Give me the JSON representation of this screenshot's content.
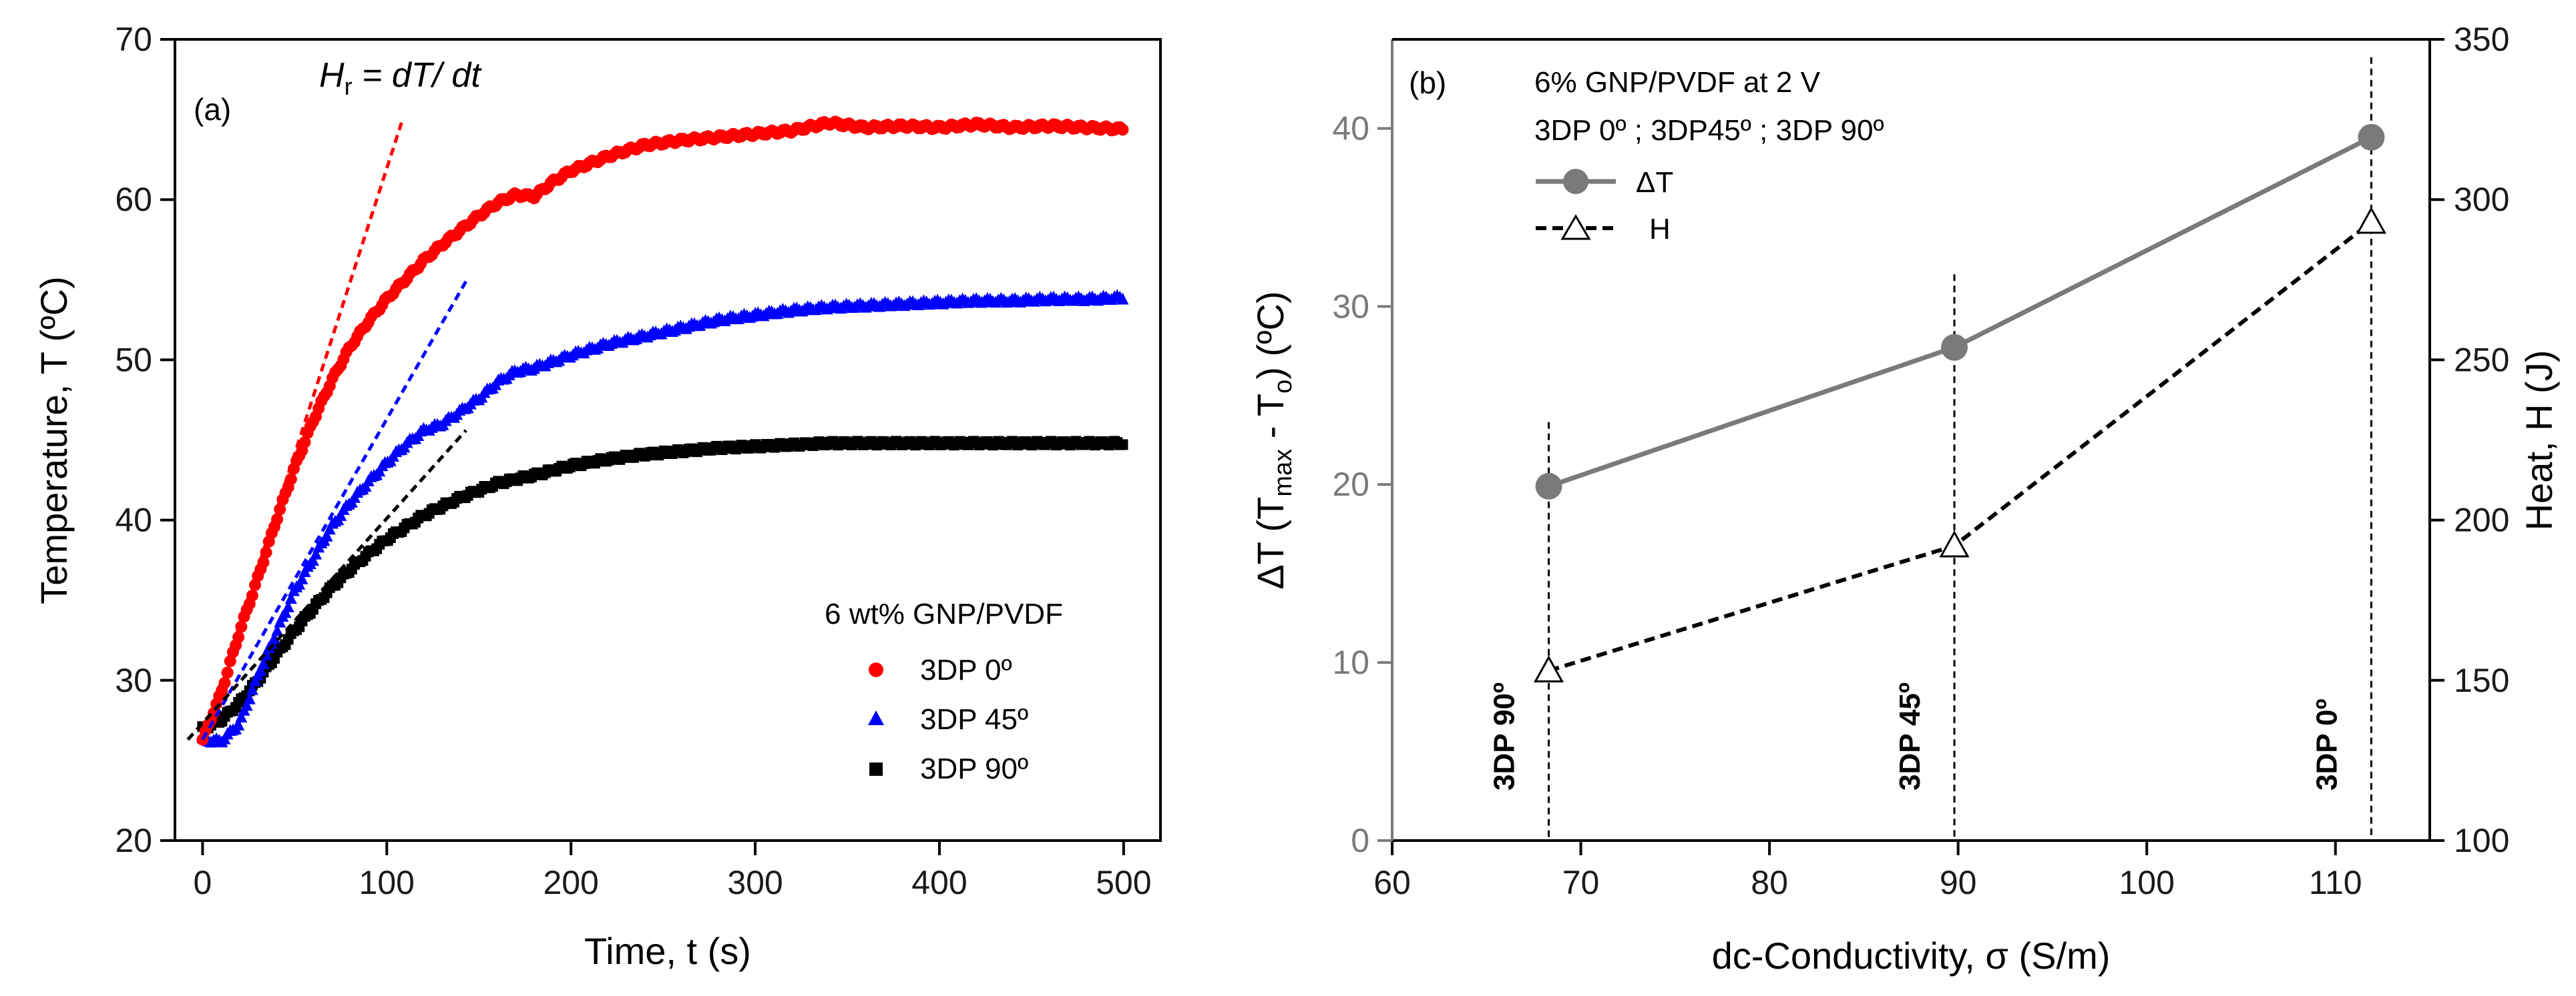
{
  "figure": "two-panel chart",
  "chart_data": [
    {
      "type": "scatter",
      "panel_label": "(a)",
      "xlabel": "Time, t (s)",
      "ylabel": "Temperature, T (ºC)",
      "xlim": [
        -15,
        520
      ],
      "ylim": [
        20,
        70
      ],
      "xticks": [
        0,
        100,
        200,
        300,
        400,
        500
      ],
      "yticks": [
        20,
        30,
        40,
        50,
        60,
        70
      ],
      "annotation": {
        "prefix": "H",
        "subscript": "r",
        "suffix": " = dT/ dt"
      },
      "legend_title": "6 wt% GNP/PVDF",
      "series": [
        {
          "name": "3DP 0º",
          "color": "#ff0000",
          "marker": "circle",
          "t": [
            0,
            10,
            20,
            30,
            40,
            50,
            60,
            70,
            80,
            90,
            100,
            110,
            120,
            130,
            140,
            150,
            160,
            170,
            180,
            190,
            200,
            220,
            240,
            260,
            280,
            300,
            320,
            340,
            360,
            380,
            400,
            420,
            440,
            460,
            480,
            500
          ],
          "T": [
            26.3,
            29.2,
            33.0,
            36.4,
            40.0,
            43.3,
            46.2,
            48.7,
            50.8,
            52.4,
            53.8,
            55.0,
            56.2,
            57.2,
            58.1,
            59.0,
            59.8,
            60.3,
            60.2,
            61.1,
            61.8,
            62.7,
            63.4,
            63.7,
            63.9,
            64.1,
            64.3,
            64.8,
            64.5,
            64.6,
            64.5,
            64.7,
            64.5,
            64.6,
            64.5,
            64.4
          ]
        },
        {
          "name": "3DP 45º",
          "color": "#0000ff",
          "marker": "triangle",
          "t": [
            0,
            10,
            20,
            30,
            40,
            50,
            60,
            70,
            80,
            90,
            100,
            110,
            120,
            130,
            140,
            150,
            160,
            170,
            180,
            200,
            220,
            240,
            260,
            280,
            300,
            320,
            340,
            360,
            380,
            400,
            420,
            440,
            460,
            480,
            500
          ],
          "T": [
            26.3,
            26.2,
            27.3,
            30.3,
            33.0,
            35.6,
            37.6,
            39.6,
            41.1,
            42.4,
            43.6,
            44.7,
            45.6,
            46.0,
            46.8,
            47.6,
            48.6,
            49.3,
            49.5,
            50.3,
            51.0,
            51.5,
            52.0,
            52.5,
            52.8,
            53.1,
            53.3,
            53.4,
            53.5,
            53.6,
            53.7,
            53.7,
            53.8,
            53.8,
            53.9
          ]
        },
        {
          "name": "3DP 90º",
          "color": "#000000",
          "marker": "square",
          "t": [
            0,
            10,
            20,
            30,
            40,
            50,
            60,
            70,
            80,
            90,
            100,
            120,
            140,
            160,
            180,
            200,
            220,
            240,
            260,
            280,
            300,
            320,
            340,
            360,
            380,
            400,
            420,
            440,
            460,
            480,
            500
          ],
          "T": [
            27.0,
            27.5,
            28.6,
            30.0,
            31.6,
            33.1,
            34.5,
            35.8,
            36.9,
            37.9,
            38.8,
            40.3,
            41.4,
            42.3,
            42.8,
            43.4,
            43.8,
            44.1,
            44.3,
            44.5,
            44.6,
            44.7,
            44.8,
            44.8,
            44.8,
            44.8,
            44.8,
            44.8,
            44.8,
            44.8,
            44.8
          ]
        }
      ],
      "tangents": [
        {
          "color": "#ff0000",
          "from": [
            0,
            26.3
          ],
          "to": [
            108,
            64.8
          ]
        },
        {
          "color": "#0000ff",
          "from": [
            0,
            26.3
          ],
          "to": [
            143,
            54.9
          ]
        },
        {
          "color": "#000000",
          "from": [
            -8,
            26.3
          ],
          "to": [
            143,
            45.6
          ]
        }
      ]
    },
    {
      "type": "line",
      "panel_label": "(b)",
      "title_lines": [
        "6% GNP/PVDF at 2 V",
        "3DP 0º ; 3DP45º ; 3DP 90º"
      ],
      "xlabel": "dc-Conductivity, σ (S/m)",
      "ylabel": "ΔT (Tmax - To) (ºC)",
      "ylabel_parts": {
        "a": "ΔT (T",
        "b": "max",
        "c": " - T",
        "d": "o",
        "e": ") (ºC)"
      },
      "y2label": "Heat, H (J)",
      "xlim": [
        60,
        115
      ],
      "ylim": [
        0,
        45
      ],
      "y2lim": [
        100,
        350
      ],
      "xticks": [
        60,
        70,
        80,
        90,
        100,
        110
      ],
      "yticks": [
        0,
        10,
        20,
        30,
        40
      ],
      "y2ticks": [
        100,
        150,
        200,
        250,
        300,
        350
      ],
      "x": [
        68.3,
        89.8,
        111.9
      ],
      "series": [
        {
          "name": "ΔT",
          "axis": "left",
          "color": "#7a7a7a",
          "marker": "circle",
          "values": [
            19.9,
            27.7,
            39.5
          ]
        },
        {
          "name": "H",
          "axis": "right",
          "color": "#000000",
          "marker": "open-triangle",
          "values": [
            153,
            192,
            293
          ]
        }
      ],
      "markers": [
        {
          "label": "3DP 90º",
          "x": 68.3
        },
        {
          "label": "3DP 45º",
          "x": 89.8
        },
        {
          "label": "3DP 0º",
          "x": 111.9
        }
      ]
    }
  ]
}
